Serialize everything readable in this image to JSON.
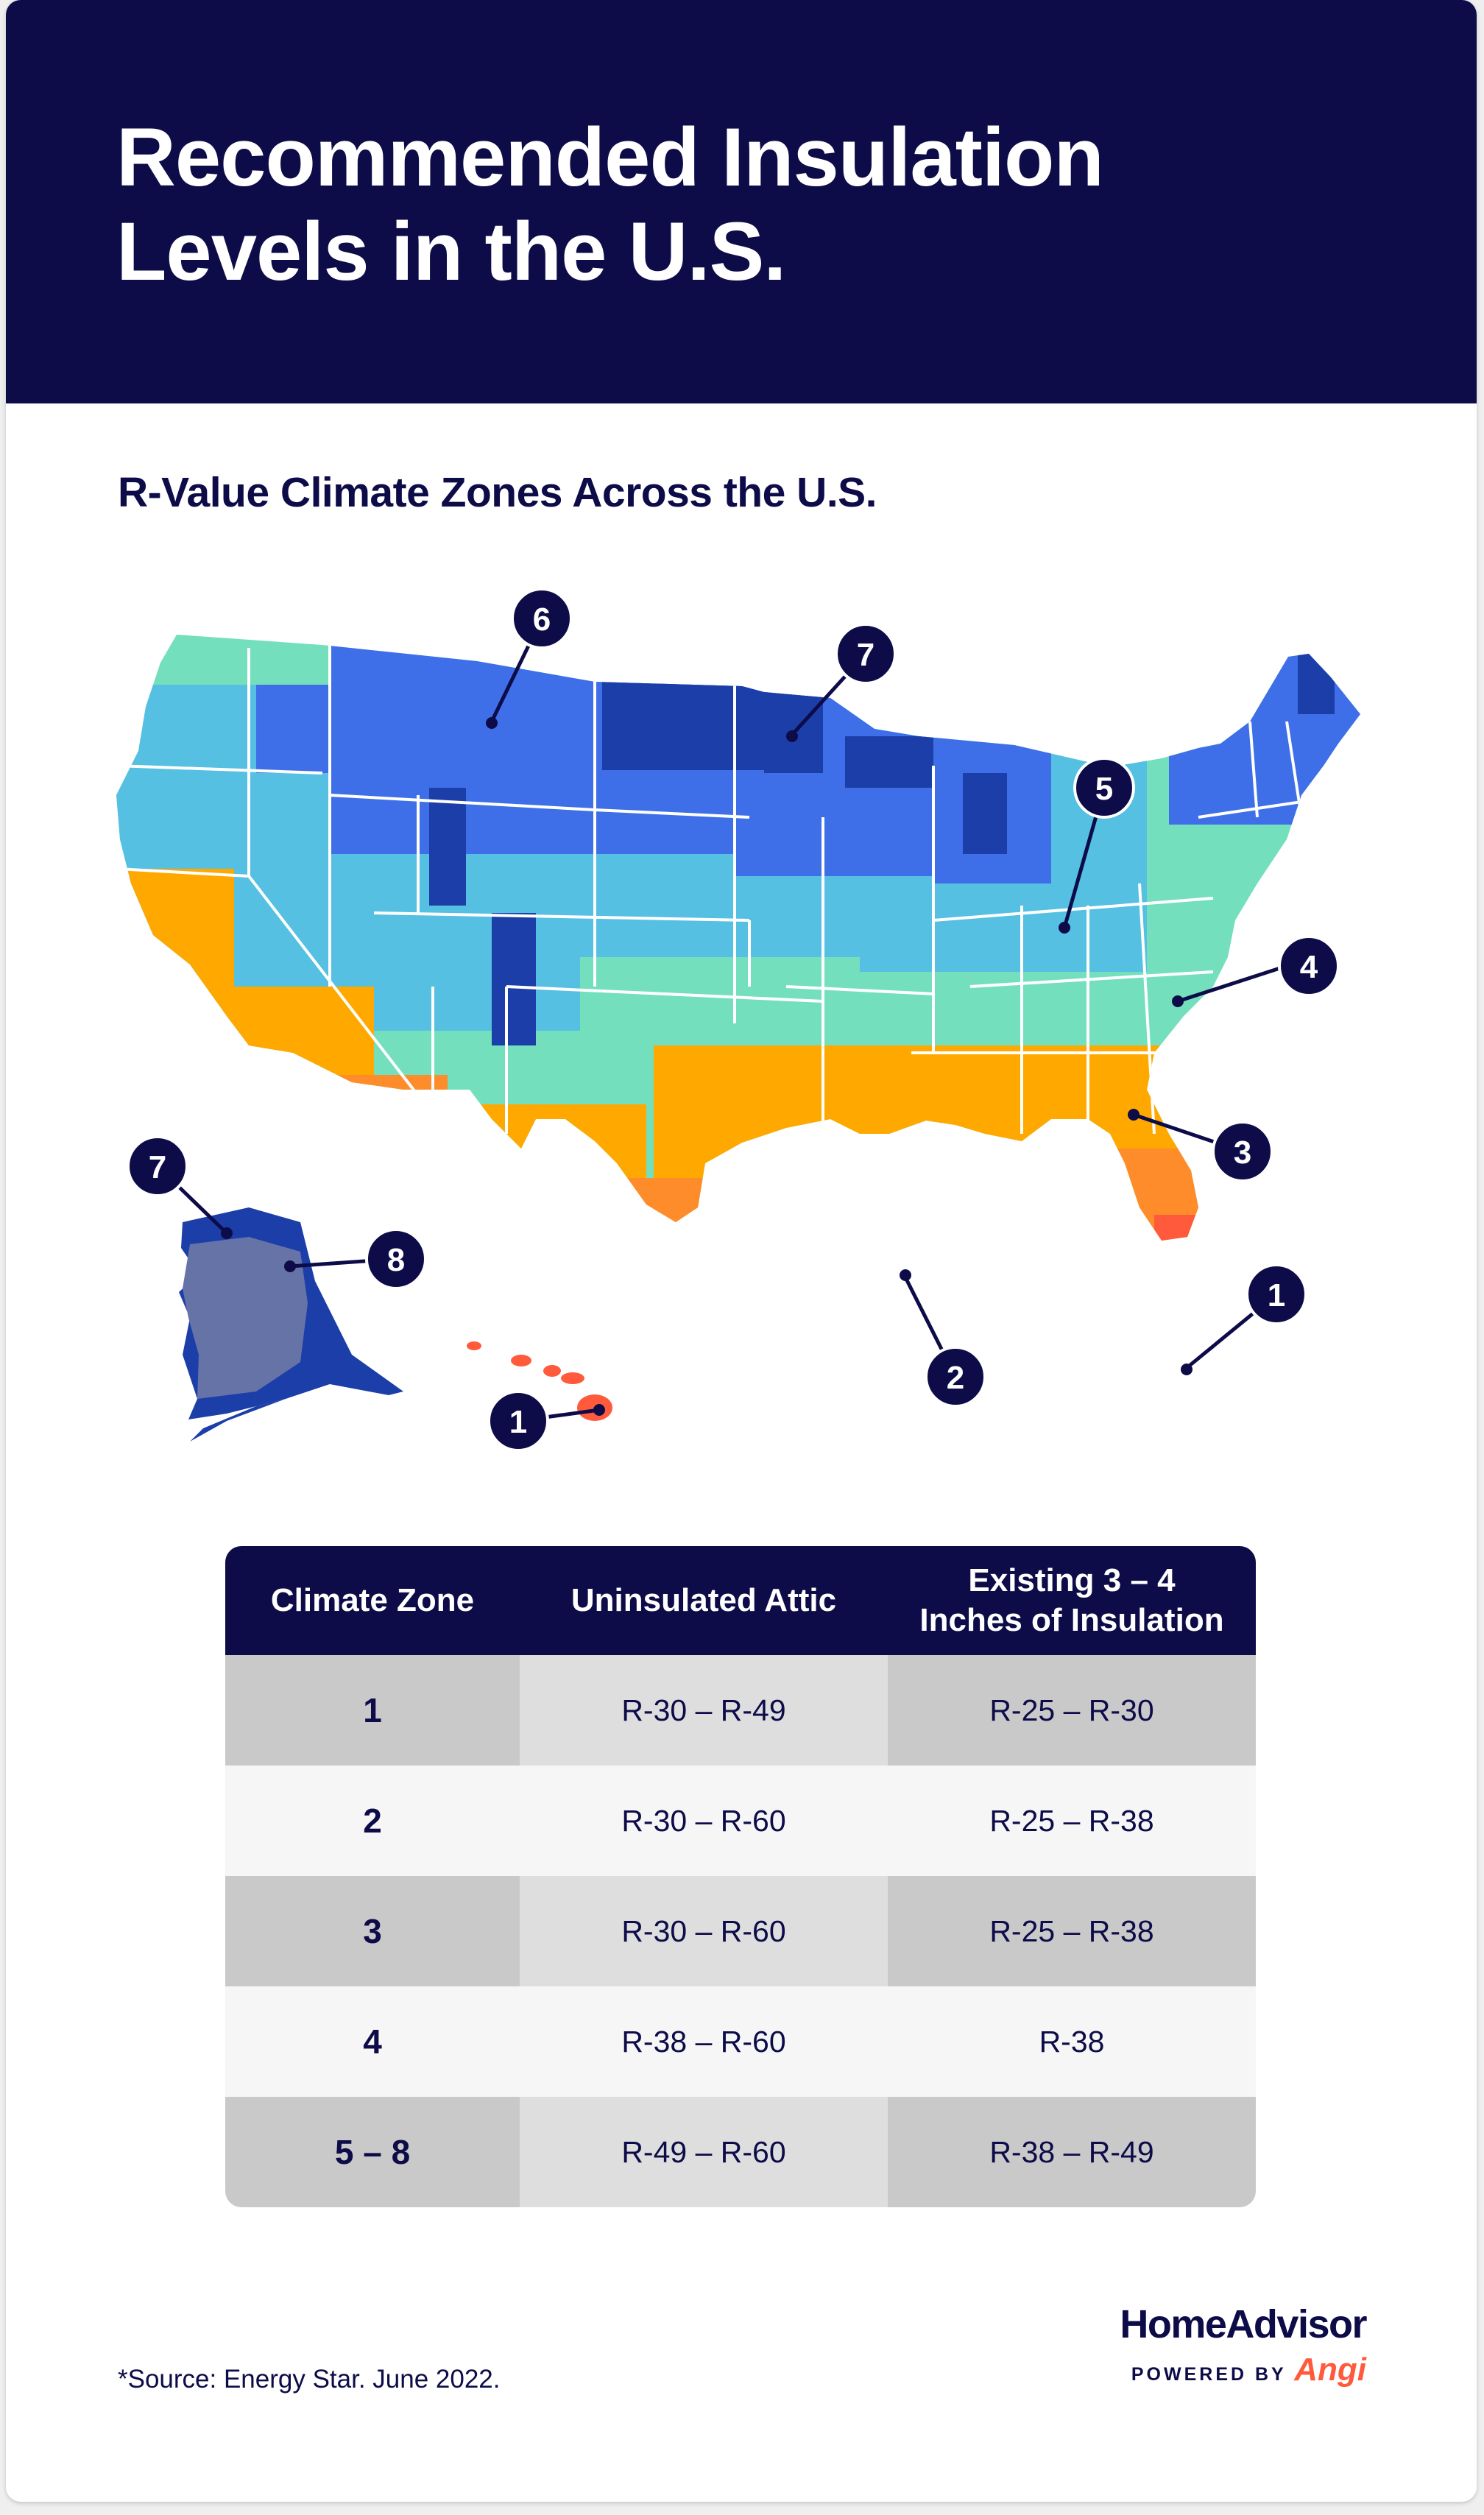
{
  "title_line1": "Recommended Insulation",
  "title_line2": "Levels in the U.S.",
  "subtitle": "R-Value Climate Zones Across the U.S.",
  "map": {
    "callouts": {
      "c6": "6",
      "c7a": "7",
      "c5": "5",
      "c4": "4",
      "c3": "3",
      "c2": "2",
      "c1a": "1",
      "c1b": "1",
      "c7b": "7",
      "c8": "8"
    },
    "colors": {
      "zone1": "#ff5a3c",
      "zone2": "#ff8c2a",
      "zone3": "#ffa800",
      "zone4": "#74dfbd",
      "zone5": "#55c0e2",
      "zone6": "#3f6fe8",
      "zone7": "#1c3ea8",
      "zone8": "#6673a6",
      "navy": "#0d0c48"
    }
  },
  "table": {
    "headers": {
      "zone": "Climate Zone",
      "uninsulated": "Uninsulated Attic",
      "existing_line1": "Existing 3 – 4",
      "existing_line2": "Inches of Insulation"
    },
    "rows": [
      {
        "zone": "1",
        "uninsulated": "R-30 – R-49",
        "existing": "R-25 – R-30"
      },
      {
        "zone": "2",
        "uninsulated": "R-30 – R-60",
        "existing": "R-25 – R-38"
      },
      {
        "zone": "3",
        "uninsulated": "R-30 – R-60",
        "existing": "R-25 – R-38"
      },
      {
        "zone": "4",
        "uninsulated": "R-38 – R-60",
        "existing": "R-38"
      },
      {
        "zone": "5 – 8",
        "uninsulated": "R-49 – R-60",
        "existing": "R-38 – R-49"
      }
    ]
  },
  "source": "*Source: Energy Star. June 2022.",
  "logo": {
    "brand": "HomeAdvisor",
    "powered_by": "POWERED BY",
    "angi": "Angi"
  }
}
